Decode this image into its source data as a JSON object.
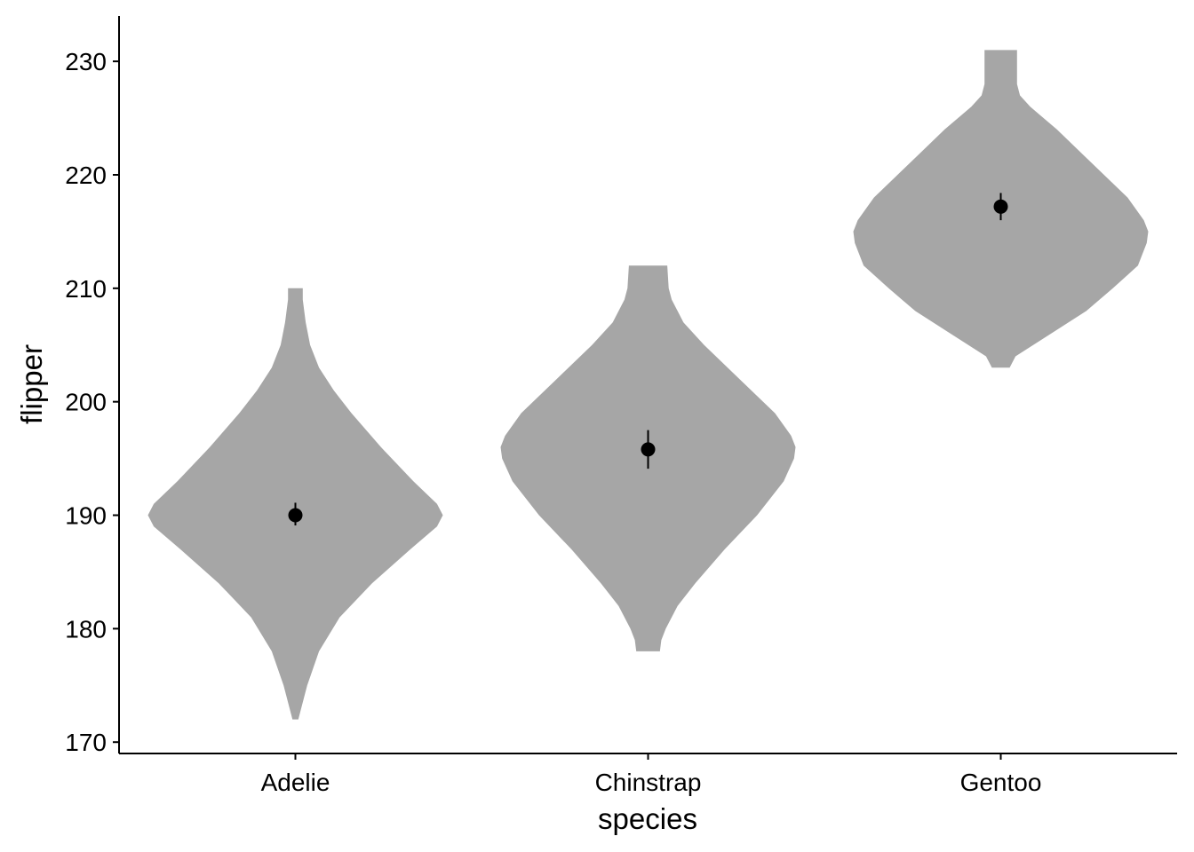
{
  "chart_data": {
    "type": "violin",
    "x_axis": {
      "label": "species",
      "categories": [
        "Adelie",
        "Chinstrap",
        "Gentoo"
      ]
    },
    "y_axis": {
      "label": "flipper",
      "range": [
        169,
        234
      ],
      "ticks": [
        170,
        180,
        190,
        200,
        210,
        220,
        230
      ],
      "tick_labels": [
        "170",
        "180",
        "190",
        "200",
        "210",
        "220",
        "230"
      ]
    },
    "grid": false,
    "legend": "none",
    "colors": {
      "violin_fill": "#a6a6a6",
      "point": "#000000",
      "axis": "#000000"
    },
    "violins": [
      {
        "species": "Adelie",
        "min": 172,
        "max": 210,
        "profile": [
          [
            172,
            0.02
          ],
          [
            173,
            0.04
          ],
          [
            175,
            0.08
          ],
          [
            178,
            0.16
          ],
          [
            181,
            0.3
          ],
          [
            184,
            0.52
          ],
          [
            187,
            0.78
          ],
          [
            189,
            0.96
          ],
          [
            190,
            1.0
          ],
          [
            191,
            0.96
          ],
          [
            193,
            0.8
          ],
          [
            196,
            0.58
          ],
          [
            199,
            0.38
          ],
          [
            201,
            0.26
          ],
          [
            203,
            0.16
          ],
          [
            205,
            0.1
          ],
          [
            207,
            0.07
          ],
          [
            209,
            0.05
          ],
          [
            210,
            0.05
          ]
        ]
      },
      {
        "species": "Chinstrap",
        "min": 178,
        "max": 212,
        "profile": [
          [
            178,
            0.08
          ],
          [
            179,
            0.09
          ],
          [
            180,
            0.12
          ],
          [
            182,
            0.2
          ],
          [
            184,
            0.32
          ],
          [
            187,
            0.52
          ],
          [
            190,
            0.74
          ],
          [
            193,
            0.92
          ],
          [
            195,
            0.99
          ],
          [
            196,
            1.0
          ],
          [
            197,
            0.97
          ],
          [
            199,
            0.86
          ],
          [
            202,
            0.62
          ],
          [
            205,
            0.38
          ],
          [
            207,
            0.24
          ],
          [
            209,
            0.16
          ],
          [
            210,
            0.14
          ],
          [
            212,
            0.13
          ]
        ]
      },
      {
        "species": "Gentoo",
        "min": 203,
        "max": 231,
        "profile": [
          [
            203,
            0.06
          ],
          [
            204,
            0.1
          ],
          [
            206,
            0.34
          ],
          [
            208,
            0.58
          ],
          [
            210,
            0.76
          ],
          [
            212,
            0.93
          ],
          [
            214,
            0.99
          ],
          [
            215,
            1.0
          ],
          [
            216,
            0.97
          ],
          [
            218,
            0.86
          ],
          [
            220,
            0.7
          ],
          [
            222,
            0.54
          ],
          [
            224,
            0.38
          ],
          [
            226,
            0.2
          ],
          [
            227,
            0.13
          ],
          [
            228,
            0.11
          ],
          [
            230,
            0.11
          ],
          [
            231,
            0.11
          ]
        ]
      }
    ],
    "summary_points": [
      {
        "species": "Adelie",
        "mean": 190.0,
        "lower": 189.1,
        "upper": 191.1
      },
      {
        "species": "Chinstrap",
        "mean": 195.8,
        "lower": 194.1,
        "upper": 197.5
      },
      {
        "species": "Gentoo",
        "mean": 217.2,
        "lower": 216.0,
        "upper": 218.4
      }
    ]
  }
}
